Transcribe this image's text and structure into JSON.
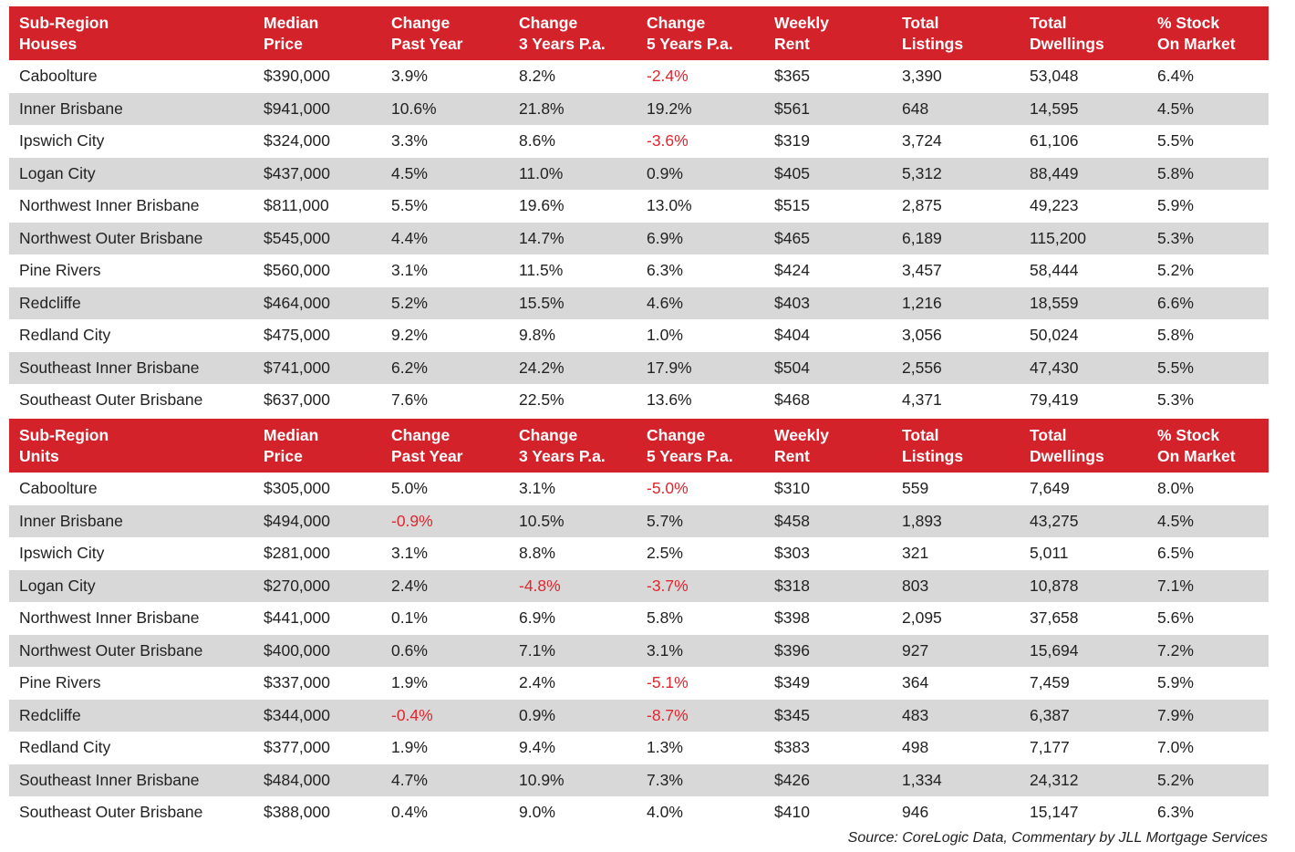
{
  "houses": {
    "headers": [
      "Sub-Region\nHouses",
      "Median\nPrice",
      "Change\nPast Year",
      "Change\n3 Years P.a.",
      "Change\n5 Years P.a.",
      "Weekly\nRent",
      "Total\nListings",
      "Total\nDwellings",
      "% Stock\nOn Market"
    ],
    "rows": [
      [
        "Caboolture",
        "$390,000",
        "3.9%",
        "8.2%",
        "-2.4%",
        "$365",
        "3,390",
        "53,048",
        "6.4%"
      ],
      [
        "Inner Brisbane",
        "$941,000",
        "10.6%",
        "21.8%",
        "19.2%",
        "$561",
        "648",
        "14,595",
        "4.5%"
      ],
      [
        "Ipswich City",
        "$324,000",
        "3.3%",
        "8.6%",
        "-3.6%",
        "$319",
        "3,724",
        "61,106",
        "5.5%"
      ],
      [
        "Logan City",
        "$437,000",
        "4.5%",
        "11.0%",
        "0.9%",
        "$405",
        "5,312",
        "88,449",
        "5.8%"
      ],
      [
        "Northwest Inner Brisbane",
        "$811,000",
        "5.5%",
        "19.6%",
        "13.0%",
        "$515",
        "2,875",
        "49,223",
        "5.9%"
      ],
      [
        "Northwest Outer Brisbane",
        "$545,000",
        "4.4%",
        "14.7%",
        "6.9%",
        "$465",
        "6,189",
        "115,200",
        "5.3%"
      ],
      [
        "Pine Rivers",
        "$560,000",
        "3.1%",
        "11.5%",
        "6.3%",
        "$424",
        "3,457",
        "58,444",
        "5.2%"
      ],
      [
        "Redcliffe",
        "$464,000",
        "5.2%",
        "15.5%",
        "4.6%",
        "$403",
        "1,216",
        "18,559",
        "6.6%"
      ],
      [
        "Redland City",
        "$475,000",
        "9.2%",
        "9.8%",
        "1.0%",
        "$404",
        "3,056",
        "50,024",
        "5.8%"
      ],
      [
        "Southeast Inner Brisbane",
        "$741,000",
        "6.2%",
        "24.2%",
        "17.9%",
        "$504",
        "2,556",
        "47,430",
        "5.5%"
      ],
      [
        "Southeast Outer Brisbane",
        "$637,000",
        "7.6%",
        "22.5%",
        "13.6%",
        "$468",
        "4,371",
        "79,419",
        "5.3%"
      ]
    ]
  },
  "units": {
    "headers": [
      "Sub-Region\nUnits",
      "Median\nPrice",
      "Change\nPast Year",
      "Change\n3 Years P.a.",
      "Change\n5 Years P.a.",
      "Weekly\nRent",
      "Total\nListings",
      "Total\nDwellings",
      "% Stock\nOn Market"
    ],
    "rows": [
      [
        "Caboolture",
        "$305,000",
        "5.0%",
        "3.1%",
        "-5.0%",
        "$310",
        "559",
        "7,649",
        "8.0%"
      ],
      [
        "Inner Brisbane",
        "$494,000",
        "-0.9%",
        "10.5%",
        "5.7%",
        "$458",
        "1,893",
        "43,275",
        "4.5%"
      ],
      [
        "Ipswich City",
        "$281,000",
        "3.1%",
        "8.8%",
        "2.5%",
        "$303",
        "321",
        "5,011",
        "6.5%"
      ],
      [
        "Logan City",
        "$270,000",
        "2.4%",
        "-4.8%",
        "-3.7%",
        "$318",
        "803",
        "10,878",
        "7.1%"
      ],
      [
        "Northwest Inner Brisbane",
        "$441,000",
        "0.1%",
        "6.9%",
        "5.8%",
        "$398",
        "2,095",
        "37,658",
        "5.6%"
      ],
      [
        "Northwest Outer Brisbane",
        "$400,000",
        "0.6%",
        "7.1%",
        "3.1%",
        "$396",
        "927",
        "15,694",
        "7.2%"
      ],
      [
        "Pine Rivers",
        "$337,000",
        "1.9%",
        "2.4%",
        "-5.1%",
        "$349",
        "364",
        "7,459",
        "5.9%"
      ],
      [
        "Redcliffe",
        "$344,000",
        "-0.4%",
        "0.9%",
        "-8.7%",
        "$345",
        "483",
        "6,387",
        "7.9%"
      ],
      [
        "Redland City",
        "$377,000",
        "1.9%",
        "9.4%",
        "1.3%",
        "$383",
        "498",
        "7,177",
        "7.0%"
      ],
      [
        "Southeast Inner Brisbane",
        "$484,000",
        "4.7%",
        "10.9%",
        "7.3%",
        "$426",
        "1,334",
        "24,312",
        "5.2%"
      ],
      [
        "Southeast Outer Brisbane",
        "$388,000",
        "0.4%",
        "9.0%",
        "4.0%",
        "$410",
        "946",
        "15,147",
        "6.3%"
      ]
    ]
  },
  "source": "Source: CoreLogic Data, Commentary by JLL Mortgage Services",
  "colors": {
    "header_bg": "#d4222a",
    "header_text": "#ffffff",
    "alt_row_bg": "#d8d8d8",
    "negative_text": "#e0262e"
  }
}
